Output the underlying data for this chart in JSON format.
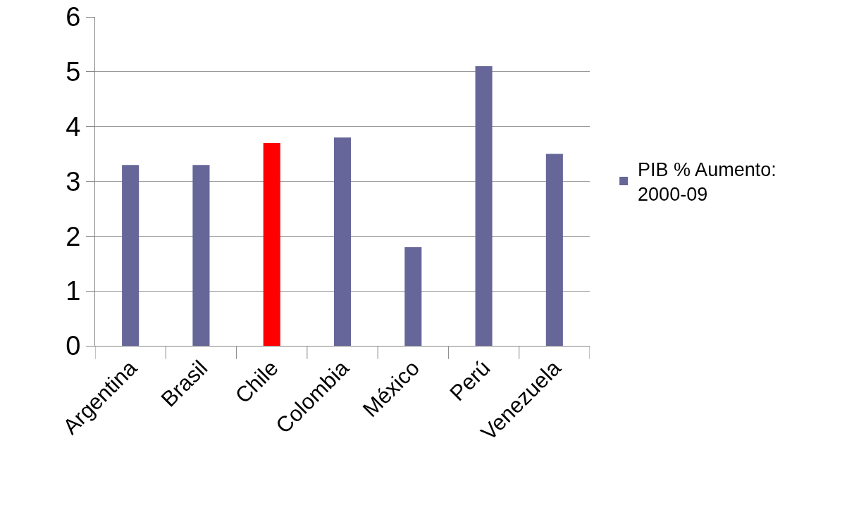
{
  "chart_data": {
    "type": "bar",
    "categories": [
      "Argentina",
      "Brasil",
      "Chile",
      "Colombia",
      "México",
      "Perú",
      "Venezuela"
    ],
    "series": [
      {
        "name": "PIB % Aumento: 2000-09",
        "color": "#666699",
        "colors": [
          "#666699",
          "#666699",
          "#ff0000",
          "#666699",
          "#666699",
          "#666699",
          "#666699"
        ],
        "values": [
          3.3,
          3.3,
          3.7,
          3.8,
          1.8,
          5.1,
          3.5
        ]
      }
    ],
    "ylim": [
      0,
      6
    ],
    "yticks": [
      0,
      1,
      2,
      3,
      4,
      5,
      6
    ],
    "grid": "y",
    "legend": "right"
  }
}
